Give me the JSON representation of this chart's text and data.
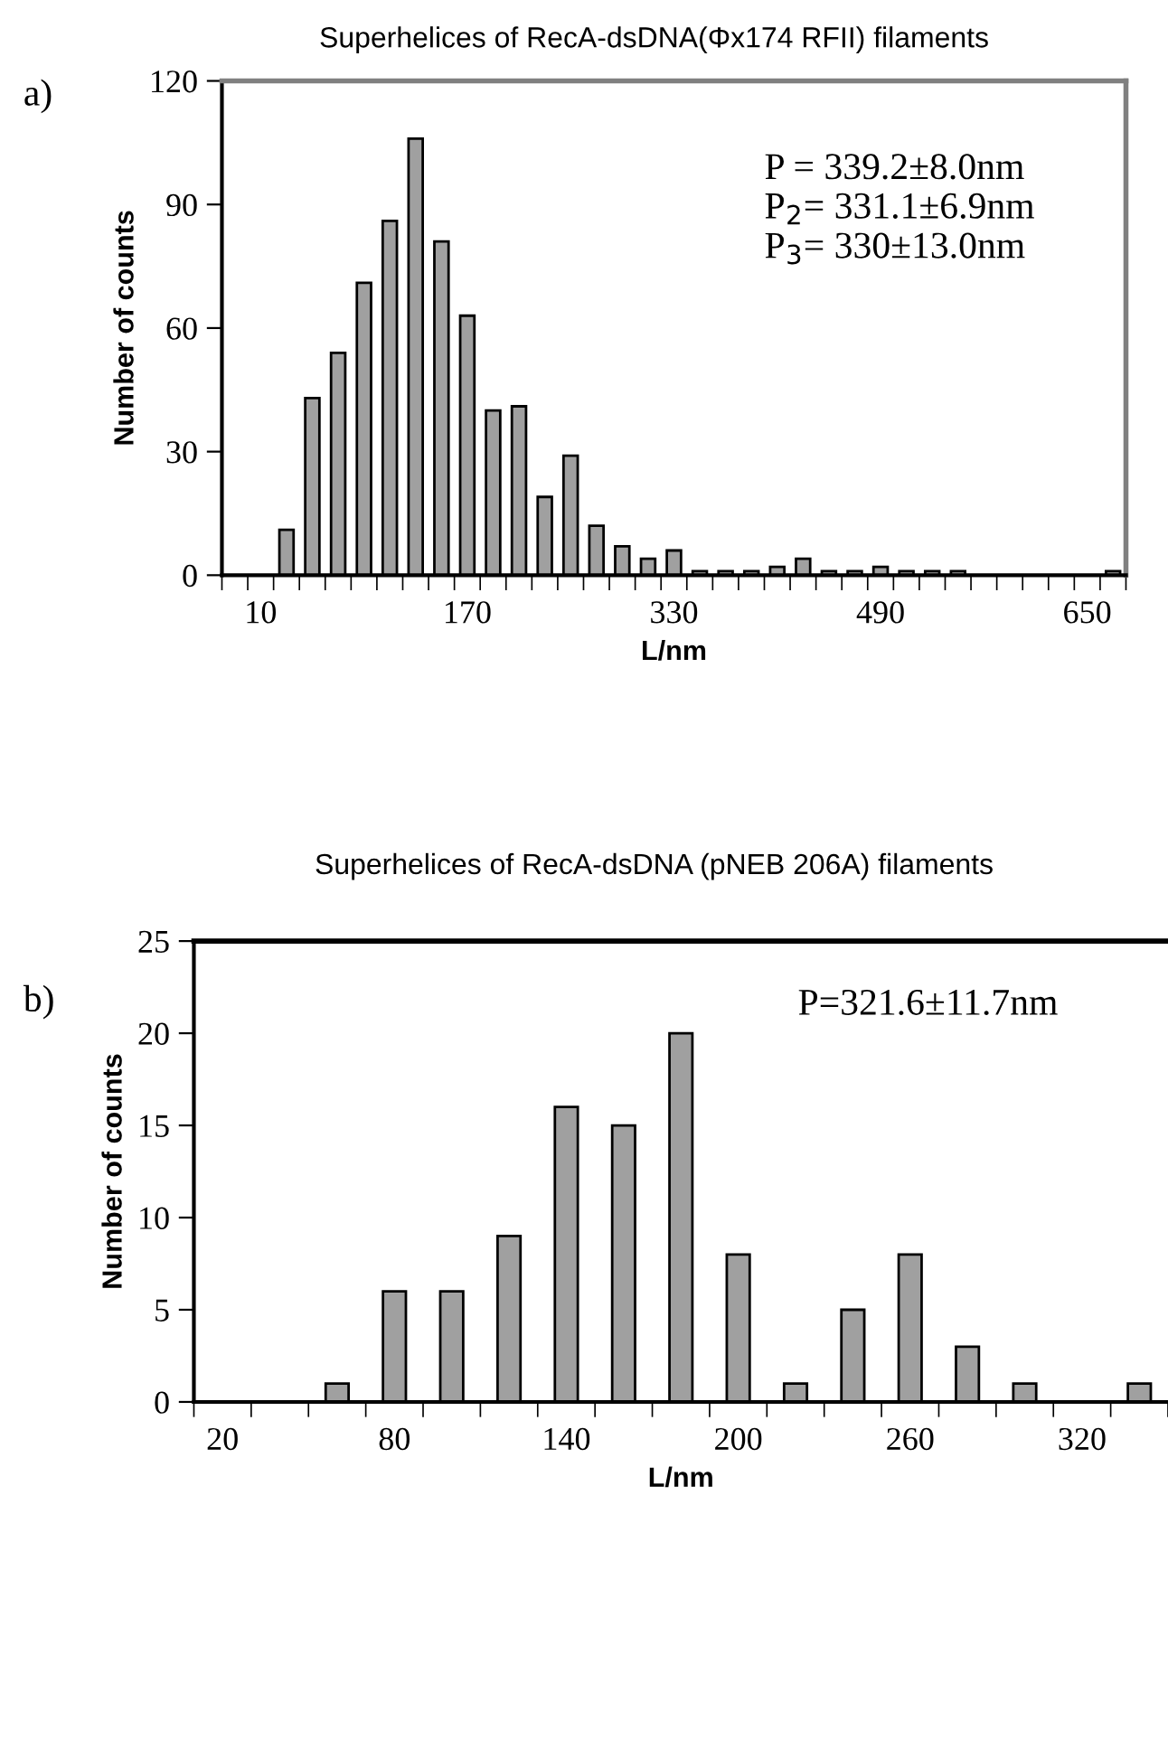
{
  "chart_data": [
    {
      "type": "bar",
      "title": "Superhelices of RecA-dsDNA(Φx174 RFII) filaments",
      "xlabel": "L/nm",
      "ylabel": "Number of counts",
      "categories": [
        null,
        "10",
        null,
        null,
        null,
        null,
        null,
        null,
        null,
        "170",
        null,
        null,
        null,
        null,
        null,
        null,
        null,
        "330",
        null,
        null,
        null,
        null,
        null,
        null,
        null,
        "490",
        null,
        null,
        null,
        null,
        null,
        null,
        null,
        "650",
        null
      ],
      "values": [
        0,
        0,
        11,
        43,
        54,
        71,
        86,
        106,
        81,
        63,
        40,
        41,
        19,
        29,
        12,
        7,
        4,
        6,
        1,
        1,
        1,
        2,
        4,
        1,
        1,
        2,
        1,
        1,
        1,
        0,
        0,
        0,
        0,
        0,
        1
      ],
      "color": "#a0a0a0",
      "ylim": [
        0,
        120
      ],
      "yticks": [
        0,
        30,
        60,
        90,
        120
      ],
      "grid": false,
      "annotations": [
        "a)",
        "P = 339.2±8.0nm",
        "P$_{2}$= 331.1±6.9nm",
        "P$_{3}$= 330±13.0nm"
      ]
    },
    {
      "type": "bar",
      "title": "Superhelices of RecA-dsDNA (pNEB 206A) filaments",
      "xlabel": "L/nm",
      "ylabel": "Number of counts",
      "categories": [
        "20",
        null,
        null,
        "80",
        null,
        null,
        "140",
        null,
        null,
        "200",
        null,
        null,
        "260",
        null,
        null,
        "320",
        null
      ],
      "values": [
        0,
        0,
        1,
        6,
        6,
        9,
        16,
        15,
        20,
        8,
        1,
        5,
        8,
        3,
        1,
        0,
        1
      ],
      "color": "#a0a0a0",
      "ylim": [
        0,
        25
      ],
      "yticks": [
        0,
        5,
        10,
        15,
        20,
        25
      ],
      "grid": false,
      "annotations": [
        "b)",
        "P=321.6±11.7nm"
      ]
    }
  ]
}
